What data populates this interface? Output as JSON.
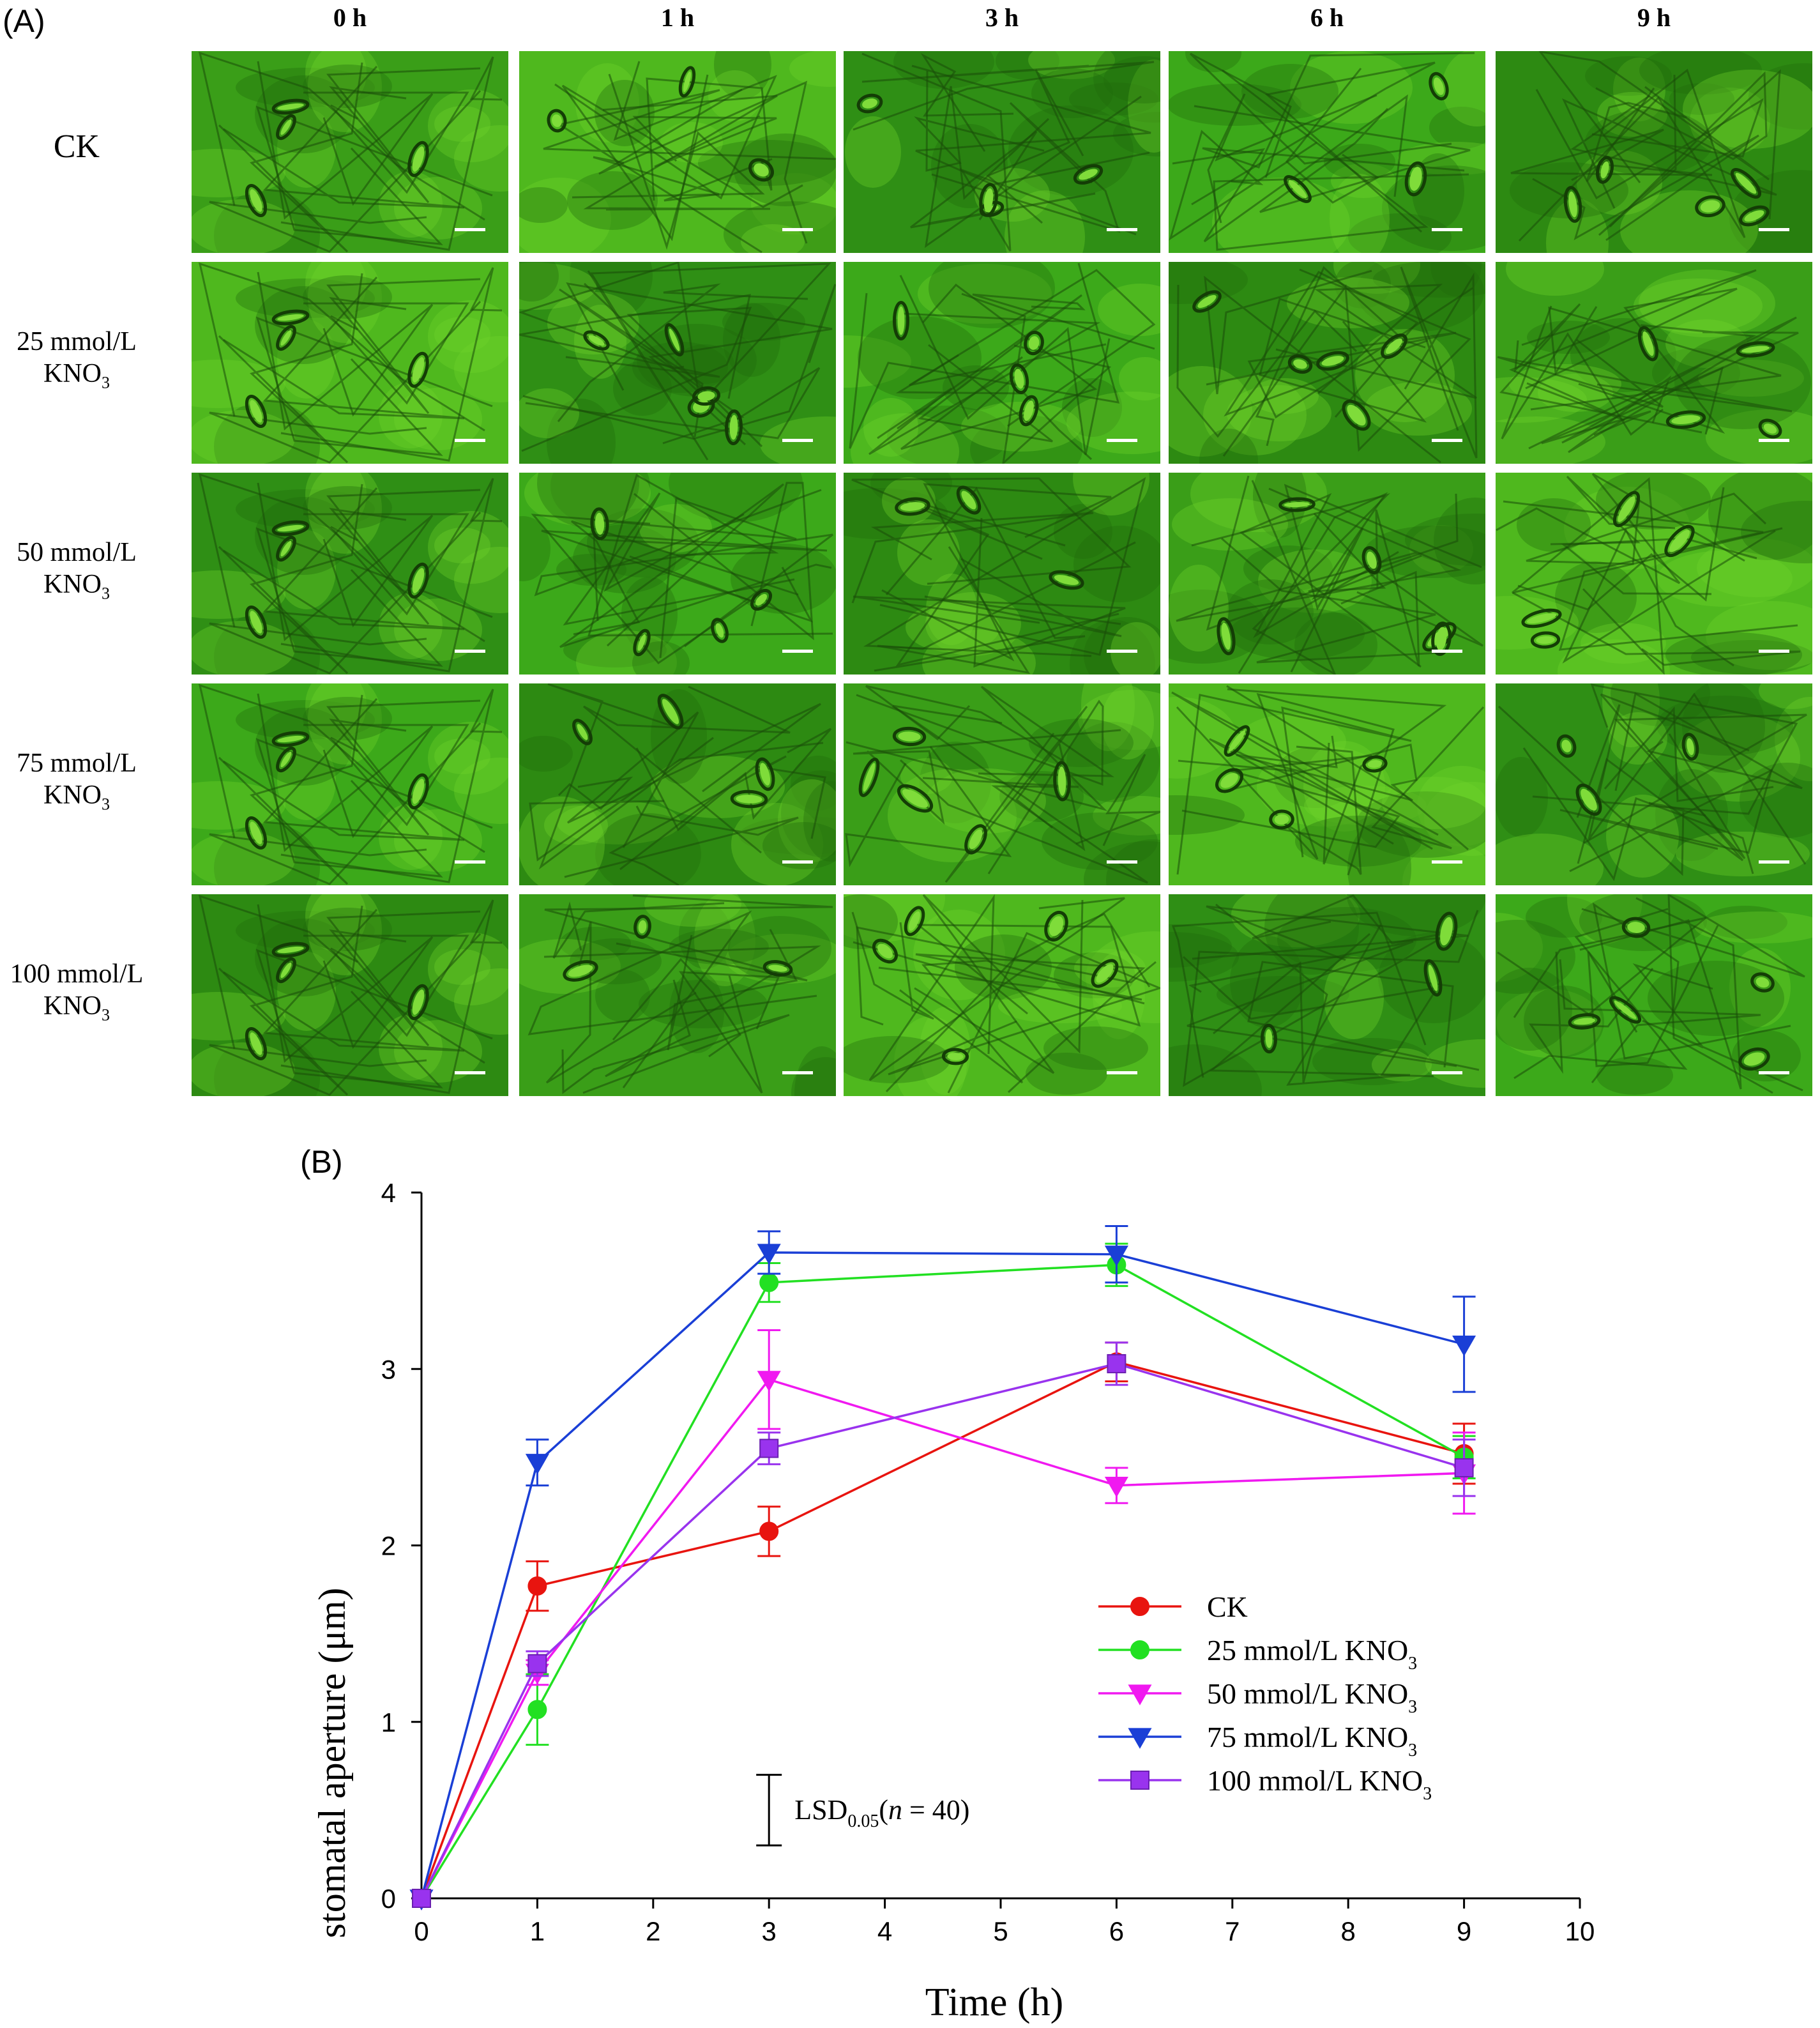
{
  "panel_a": {
    "label": "(A)",
    "columns": [
      "0 h",
      "1 h",
      "3 h",
      "6 h",
      "9 h"
    ],
    "rows": [
      {
        "main": "CK",
        "sub": "",
        "unit": ""
      },
      {
        "main": "25 mmol/L",
        "sub": "KNO",
        "unit": "3"
      },
      {
        "main": "50 mmol/L",
        "sub": "KNO",
        "unit": "3"
      },
      {
        "main": "75 mmol/L",
        "sub": "KNO",
        "unit": "3"
      },
      {
        "main": "100 mmol/L",
        "sub": "KNO",
        "unit": "3"
      }
    ]
  },
  "panel_b": {
    "label": "(B)"
  },
  "chart_data": {
    "type": "line",
    "xlabel": "Time (h)",
    "ylabel": "stomatal aperture (μm)",
    "xlim": [
      0,
      10
    ],
    "ylim": [
      0,
      4
    ],
    "xticks": [
      0,
      1,
      2,
      3,
      4,
      5,
      6,
      7,
      8,
      9,
      10
    ],
    "yticks": [
      0,
      1,
      2,
      3,
      4
    ],
    "x": [
      0,
      1,
      3,
      6,
      9
    ],
    "legend_position": "lower-right",
    "series": [
      {
        "name": "CK",
        "name_sub": "",
        "marker": "circle",
        "color": "#e8140f",
        "values": [
          0,
          1.77,
          2.08,
          3.04,
          2.52
        ],
        "errors": [
          0,
          0.14,
          0.14,
          0.11,
          0.17
        ]
      },
      {
        "name": "25 mmol/L KNO",
        "name_sub": "3",
        "marker": "circle",
        "color": "#22e022",
        "values": [
          0,
          1.07,
          3.49,
          3.59,
          2.5
        ],
        "errors": [
          0,
          0.2,
          0.11,
          0.12,
          0.12
        ]
      },
      {
        "name": "50 mmol/L KNO",
        "name_sub": "3",
        "marker": "triangle-down",
        "color": "#f019f0",
        "values": [
          0,
          1.28,
          2.94,
          2.34,
          2.41
        ],
        "errors": [
          0,
          0.07,
          0.28,
          0.1,
          0.23
        ]
      },
      {
        "name": "75 mmol/L KNO",
        "name_sub": "3",
        "marker": "triangle-down",
        "color": "#1a3fd6",
        "values": [
          0,
          2.47,
          3.66,
          3.65,
          3.14
        ],
        "errors": [
          0,
          0.13,
          0.12,
          0.16,
          0.27
        ]
      },
      {
        "name": "100 mmol/L KNO",
        "name_sub": "3",
        "marker": "square",
        "color": "#9933ee",
        "values": [
          0,
          1.33,
          2.55,
          3.03,
          2.44
        ],
        "errors": [
          0,
          0.07,
          0.09,
          0.12,
          0.16
        ]
      }
    ],
    "annotation": {
      "prefix": "LSD",
      "sub": "0.05",
      "open": "(",
      "italic": "n",
      "rest": " = 40)",
      "x": 3.0,
      "y_low": 0.3,
      "y_high": 0.7
    }
  }
}
